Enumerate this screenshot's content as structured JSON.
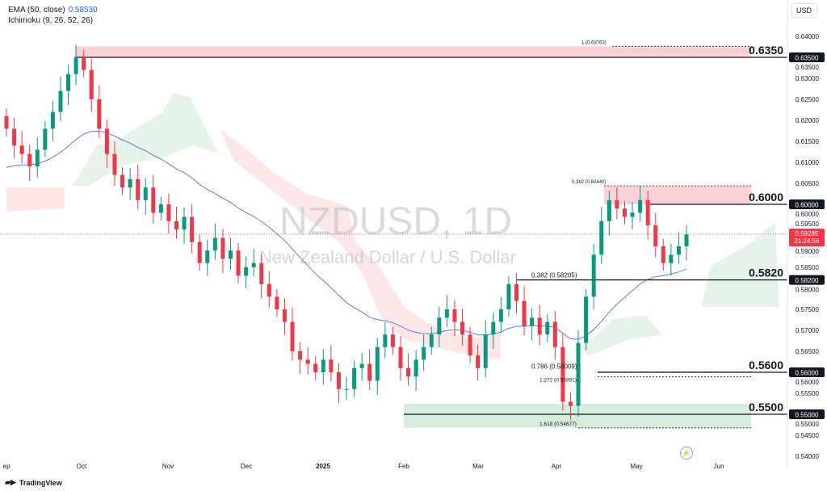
{
  "legend": {
    "ema_label": "EMA (50, close)",
    "ema_value": "0.58530",
    "ichimoku_label": "Ichimoku (9, 26, 52, 26)"
  },
  "currency": "USD",
  "watermark": {
    "symbol": "NZDUSD, 1D",
    "description": "New Zealand Dollar / U.S. Dollar"
  },
  "branding": "TradingView",
  "colors": {
    "up": "#089981",
    "down": "#f23645",
    "ema": "#5b7fd6",
    "resistance_zone": "#f8c9cf",
    "support_zone": "#cfead8"
  },
  "chart_data": {
    "type": "candlestick",
    "ylim": [
      0.54,
      0.64
    ],
    "y_ticks": [
      "0.64000",
      "0.63500",
      "0.63000",
      "0.62500",
      "0.62000",
      "0.61500",
      "0.61000",
      "0.60500",
      "0.60000",
      "0.59500",
      "0.59000",
      "0.58500",
      "0.58000",
      "0.57500",
      "0.57000",
      "0.56500",
      "0.56000",
      "0.55500",
      "0.55000",
      "0.54500",
      "0.54000"
    ],
    "x_ticks": [
      "ep",
      "Oct",
      "Nov",
      "Dec",
      "2025",
      "Feb",
      "Mar",
      "Apr",
      "May",
      "Jun"
    ],
    "closes": [
      0.618,
      0.614,
      0.612,
      0.609,
      0.613,
      0.618,
      0.622,
      0.627,
      0.631,
      0.635,
      0.632,
      0.625,
      0.618,
      0.612,
      0.607,
      0.604,
      0.606,
      0.601,
      0.604,
      0.598,
      0.6,
      0.596,
      0.594,
      0.597,
      0.591,
      0.586,
      0.589,
      0.592,
      0.587,
      0.589,
      0.583,
      0.585,
      0.586,
      0.581,
      0.578,
      0.575,
      0.572,
      0.565,
      0.563,
      0.562,
      0.56,
      0.563,
      0.56,
      0.556,
      0.556,
      0.561,
      0.562,
      0.558,
      0.566,
      0.569,
      0.566,
      0.561,
      0.559,
      0.563,
      0.566,
      0.569,
      0.573,
      0.575,
      0.572,
      0.569,
      0.564,
      0.561,
      0.569,
      0.572,
      0.575,
      0.581,
      0.577,
      0.571,
      0.573,
      0.569,
      0.572,
      0.566,
      0.553,
      0.552,
      0.567,
      0.578,
      0.588,
      0.596,
      0.601,
      0.599,
      0.597,
      0.598,
      0.601,
      0.595,
      0.59,
      0.586,
      0.588,
      0.59,
      0.59285
    ],
    "levels": [
      {
        "price": 0.635,
        "label": "0.6350",
        "axis_label": "0.63500"
      },
      {
        "price": 0.6,
        "label": "0.6000",
        "axis_label": "0.60000"
      },
      {
        "price": 0.582,
        "label": "0.5820",
        "axis_label": "0.58200"
      },
      {
        "price": 0.56,
        "label": "0.5600",
        "axis_label": "0.56000"
      },
      {
        "price": 0.55,
        "label": "0.5500",
        "axis_label": "0.55000"
      }
    ],
    "fib_labels": [
      {
        "text": "1 (0.63763)",
        "price": 0.63763
      },
      {
        "text": "0.382 (0.60440)",
        "price": 0.6044
      },
      {
        "text": "0.382 (0.58205)",
        "price": 0.58205
      },
      {
        "text": "0.786 (0.56009)",
        "price": 0.56009
      },
      {
        "text": "1.272 (0.55891)",
        "price": 0.55891
      },
      {
        "text": "1.618 (0.54677)",
        "price": 0.54677
      }
    ],
    "zones": [
      {
        "type": "resistance",
        "from": 0.635,
        "to": 0.63763
      },
      {
        "type": "resistance",
        "from": 0.6,
        "to": 0.6044
      },
      {
        "type": "support",
        "from": 0.54677,
        "to": 0.5525
      }
    ],
    "last_price": "0.59285",
    "countdown": "21:24:56"
  }
}
